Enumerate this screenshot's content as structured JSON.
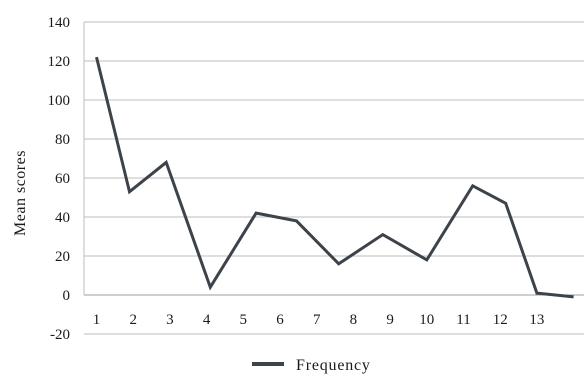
{
  "chart_data": {
    "type": "line",
    "ylabel": "Mean scores",
    "xlabel": "",
    "ylim": [
      -20,
      140
    ],
    "yticks": [
      "-20",
      "0",
      "20",
      "40",
      "60",
      "80",
      "100",
      "120",
      "140"
    ],
    "categories": [
      "1",
      "2",
      "3",
      "4",
      "5",
      "6",
      "7",
      "8",
      "9",
      "10",
      "11",
      "12",
      "13"
    ],
    "grid": "horizontal",
    "legend_position": "bottom-center",
    "series": [
      {
        "name": "Frequency",
        "color": "#3d434a",
        "x": [
          1,
          1.9,
          2.9,
          4.1,
          5.35,
          6.45,
          7.6,
          8.8,
          10,
          11.25,
          12.15,
          13,
          14
        ],
        "values": [
          122,
          53,
          68,
          4,
          42,
          38,
          16,
          31,
          18,
          56,
          47,
          1,
          -1
        ]
      }
    ]
  }
}
